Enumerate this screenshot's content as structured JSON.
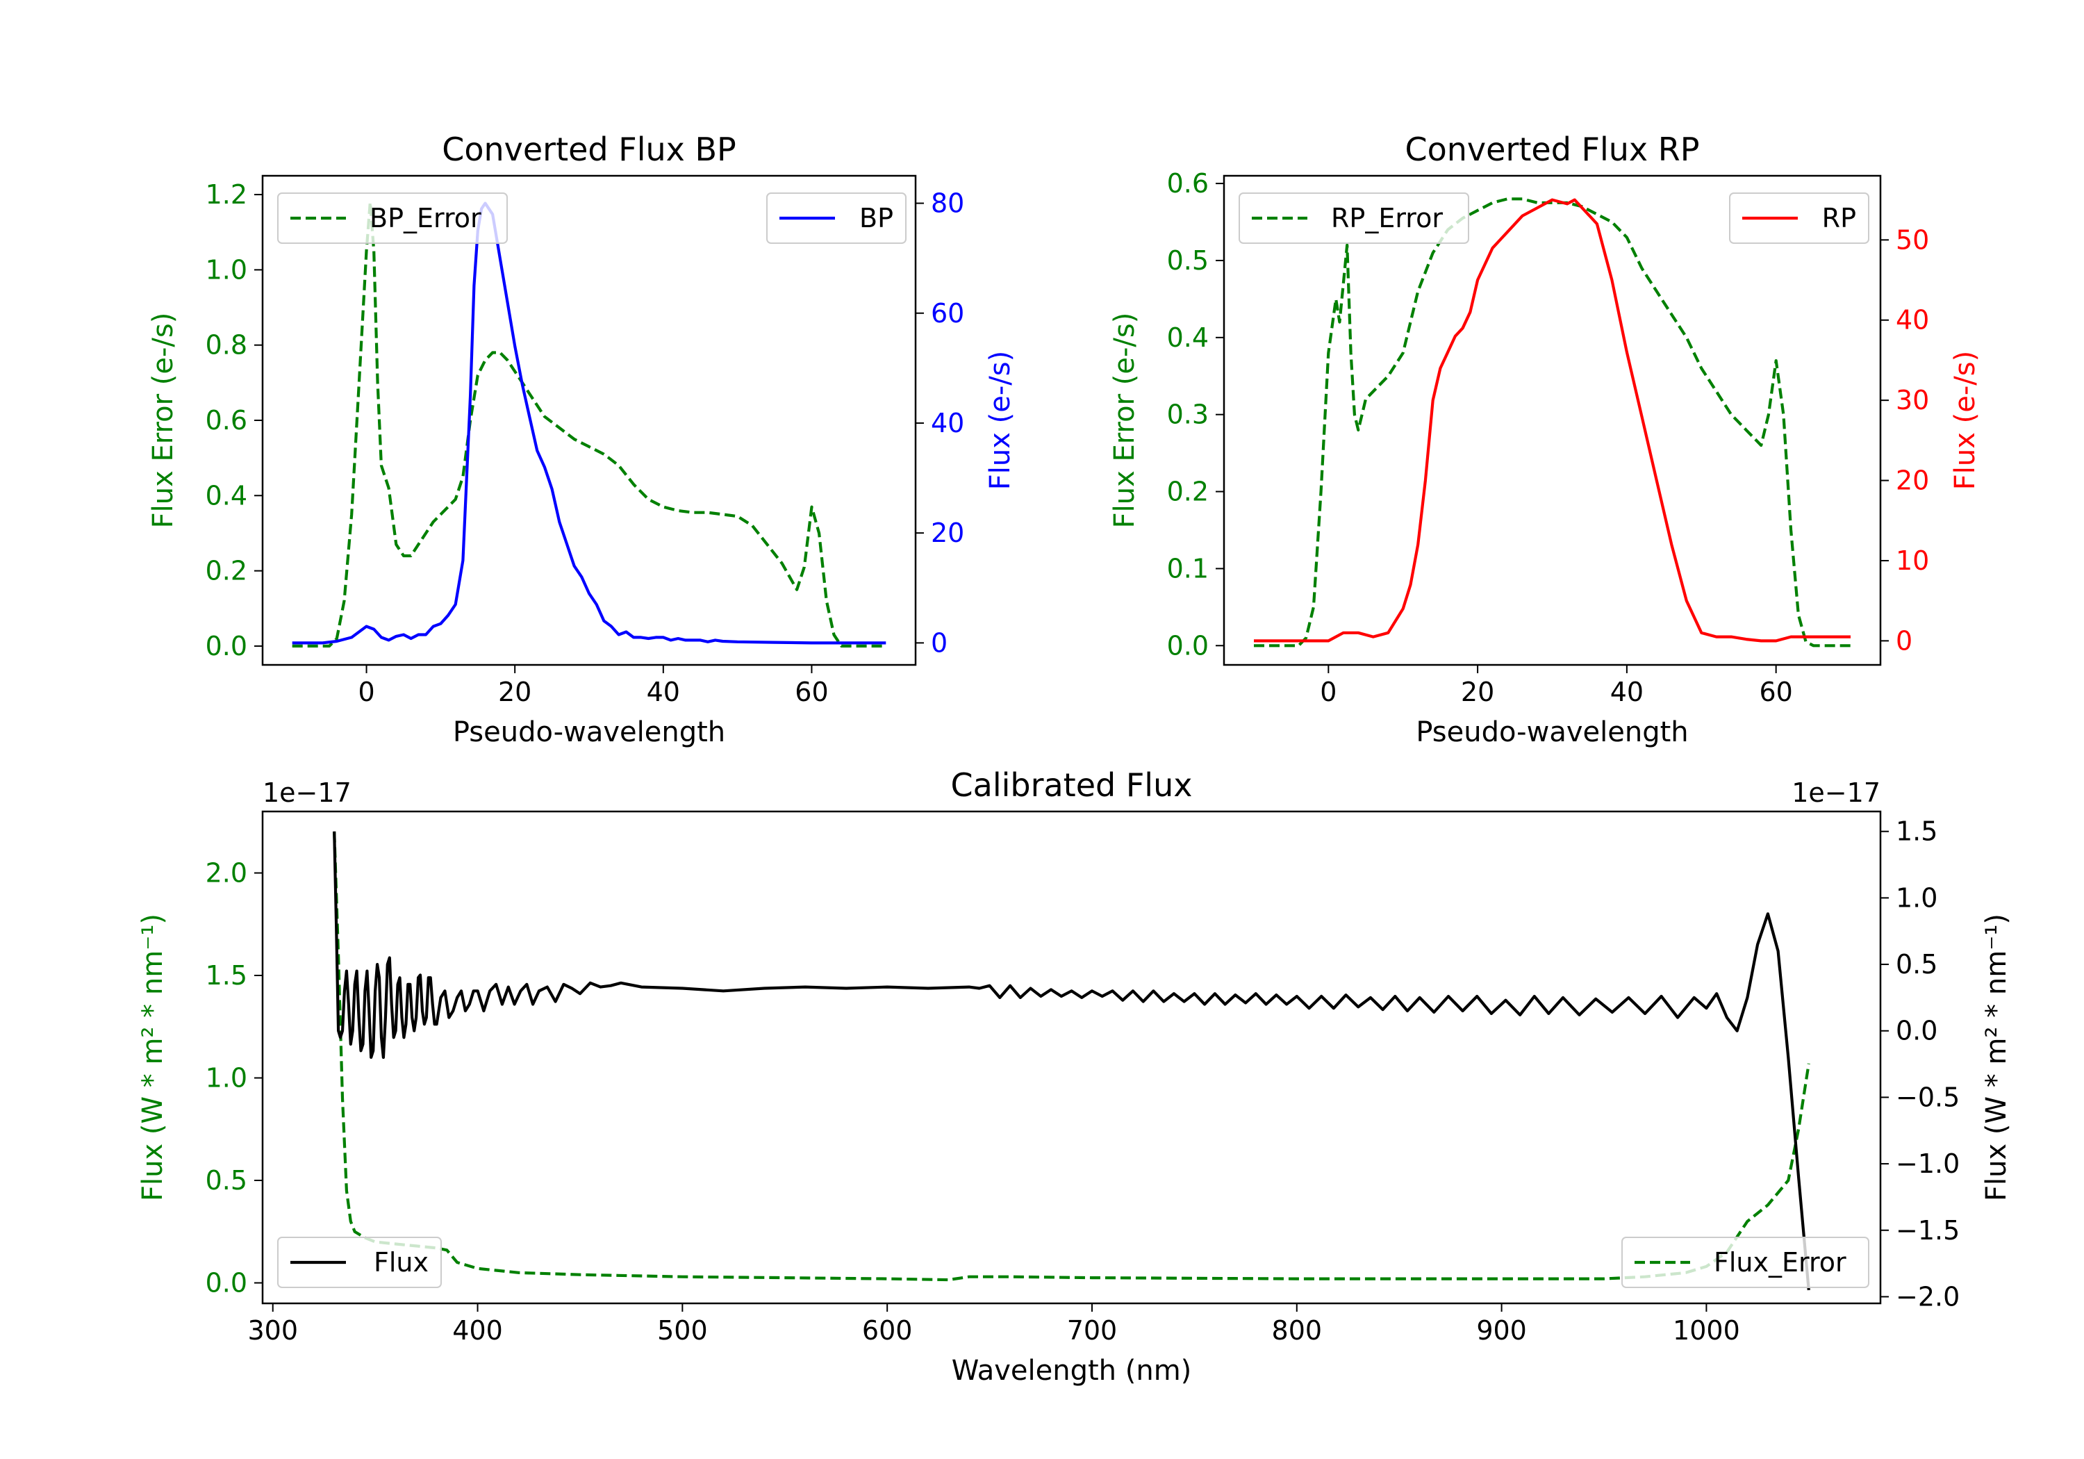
{
  "colors": {
    "green": "#008000",
    "blue": "#0000ff",
    "red": "#ff0000",
    "black": "#000000"
  },
  "chart_data": [
    {
      "id": "bp",
      "type": "line",
      "title": "Converted Flux BP",
      "xlabel": "Pseudo-wavelength",
      "ylabel_left": "Flux Error (e-/s)",
      "ylabel_right": "Flux (e-/s)",
      "xlim": [
        -14,
        74
      ],
      "ylim_left": [
        -0.05,
        1.25
      ],
      "ylim_right": [
        -4,
        85
      ],
      "xticks": [
        "0",
        "20",
        "40",
        "60"
      ],
      "yticks_left": [
        "0.0",
        "0.2",
        "0.4",
        "0.6",
        "0.8",
        "1.0",
        "1.2"
      ],
      "yticks_right": [
        "0",
        "20",
        "40",
        "60",
        "80"
      ],
      "legend_left": "BP_Error",
      "legend_right": "BP",
      "series": [
        {
          "name": "BP_Error",
          "axis": "left",
          "color": "#008000",
          "dash": true,
          "x": [
            -10,
            -5,
            -4,
            -3,
            -2,
            -1,
            0,
            0.5,
            1,
            1.5,
            2,
            3,
            4,
            5,
            6,
            7,
            8,
            9,
            10,
            11,
            12,
            13,
            14,
            15,
            16,
            17,
            18,
            19,
            20,
            21,
            22,
            24,
            26,
            28,
            30,
            32,
            34,
            36,
            38,
            40,
            42,
            44,
            46,
            48,
            50,
            52,
            54,
            56,
            58,
            59,
            60,
            61,
            62,
            63,
            64,
            65,
            70
          ],
          "y": [
            0,
            0,
            0.02,
            0.12,
            0.35,
            0.7,
            1.05,
            1.18,
            1.05,
            0.7,
            0.48,
            0.42,
            0.27,
            0.24,
            0.24,
            0.27,
            0.3,
            0.33,
            0.35,
            0.37,
            0.39,
            0.45,
            0.6,
            0.72,
            0.76,
            0.78,
            0.78,
            0.76,
            0.73,
            0.7,
            0.67,
            0.61,
            0.58,
            0.55,
            0.53,
            0.51,
            0.48,
            0.43,
            0.39,
            0.37,
            0.36,
            0.355,
            0.355,
            0.35,
            0.345,
            0.32,
            0.27,
            0.22,
            0.15,
            0.21,
            0.37,
            0.3,
            0.12,
            0.03,
            0.0,
            0.0,
            0.0
          ]
        },
        {
          "name": "BP",
          "axis": "right",
          "color": "#0000ff",
          "dash": false,
          "x": [
            -10,
            -6,
            -4,
            -2,
            0,
            1,
            2,
            3,
            4,
            5,
            6,
            7,
            8,
            9,
            10,
            11,
            12,
            13,
            14,
            14.5,
            15,
            15.5,
            16,
            17,
            18,
            19,
            20,
            21,
            22,
            23,
            24,
            25,
            26,
            27,
            28,
            29,
            30,
            31,
            32,
            33,
            34,
            35,
            36,
            37,
            38,
            39,
            40,
            41,
            42,
            43,
            44,
            45,
            46,
            47,
            48,
            50,
            55,
            60,
            65,
            70
          ],
          "y": [
            0,
            0,
            0.3,
            1,
            3,
            2.5,
            1,
            0.5,
            1.2,
            1.5,
            0.8,
            1.5,
            1.5,
            3,
            3.5,
            5,
            7,
            15,
            45,
            65,
            75,
            79,
            80,
            78,
            70,
            62,
            54,
            47,
            41,
            35,
            32,
            28,
            22,
            18,
            14,
            12,
            9,
            7,
            4,
            3,
            1.5,
            2,
            1,
            1,
            0.8,
            1,
            1,
            0.5,
            0.8,
            0.5,
            0.5,
            0.5,
            0.2,
            0.5,
            0.3,
            0.2,
            0.1,
            0,
            0,
            0
          ]
        }
      ]
    },
    {
      "id": "rp",
      "type": "line",
      "title": "Converted Flux RP",
      "xlabel": "Pseudo-wavelength",
      "ylabel_left": "Flux Error (e-/s)",
      "ylabel_right": "Flux (e-/s)",
      "xlim": [
        -14,
        74
      ],
      "ylim_left": [
        -0.025,
        0.61
      ],
      "ylim_right": [
        -3,
        58
      ],
      "xticks": [
        "0",
        "20",
        "40",
        "60"
      ],
      "yticks_left": [
        "0.0",
        "0.1",
        "0.2",
        "0.3",
        "0.4",
        "0.5",
        "0.6"
      ],
      "yticks_right": [
        "0",
        "10",
        "20",
        "30",
        "40",
        "50"
      ],
      "legend_left": "RP_Error",
      "legend_right": "RP",
      "series": [
        {
          "name": "RP_Error",
          "axis": "left",
          "color": "#008000",
          "dash": true,
          "x": [
            -10,
            -6,
            -4,
            -3,
            -2,
            -1,
            0,
            1,
            1.5,
            2,
            2.5,
            3,
            3.5,
            4,
            4.5,
            5,
            6,
            8,
            10,
            12,
            14,
            16,
            18,
            20,
            22,
            24,
            26,
            28,
            30,
            32,
            34,
            36,
            38,
            40,
            42,
            44,
            46,
            48,
            50,
            52,
            54,
            55,
            56,
            57,
            58,
            59,
            60,
            61,
            62,
            63,
            64,
            65,
            70
          ],
          "y": [
            0,
            0,
            0,
            0.01,
            0.05,
            0.2,
            0.38,
            0.45,
            0.42,
            0.47,
            0.52,
            0.38,
            0.3,
            0.28,
            0.3,
            0.32,
            0.33,
            0.35,
            0.38,
            0.46,
            0.51,
            0.54,
            0.555,
            0.565,
            0.575,
            0.58,
            0.58,
            0.575,
            0.575,
            0.575,
            0.57,
            0.56,
            0.55,
            0.53,
            0.49,
            0.46,
            0.43,
            0.4,
            0.36,
            0.33,
            0.3,
            0.29,
            0.28,
            0.27,
            0.26,
            0.3,
            0.37,
            0.3,
            0.15,
            0.04,
            0.005,
            0,
            0
          ]
        },
        {
          "name": "RP",
          "axis": "right",
          "color": "#ff0000",
          "dash": false,
          "x": [
            -10,
            -4,
            -2,
            0,
            2,
            4,
            6,
            8,
            10,
            11,
            12,
            13,
            14,
            15,
            16,
            17,
            18,
            19,
            20,
            22,
            24,
            26,
            28,
            30,
            32,
            33,
            34,
            36,
            38,
            40,
            42,
            44,
            46,
            48,
            50,
            52,
            54,
            56,
            58,
            60,
            62,
            65,
            70
          ],
          "y": [
            0,
            0,
            0,
            0,
            1,
            1,
            0.5,
            1,
            4,
            7,
            12,
            20,
            30,
            34,
            36,
            38,
            39,
            41,
            45,
            49,
            51,
            53,
            54,
            55,
            54.5,
            55,
            54,
            52,
            45,
            36,
            28,
            20,
            12,
            5,
            1,
            0.5,
            0.5,
            0.2,
            0,
            0,
            0.5,
            0.5,
            0.5
          ]
        }
      ]
    },
    {
      "id": "calibrated",
      "type": "line",
      "title": "Calibrated Flux",
      "xlabel": "Wavelength (nm)",
      "ylabel_left": "Flux (W * m² * nm⁻¹)",
      "ylabel_right": "Flux (W * m² * nm⁻¹)",
      "offset_left": "1e−17",
      "offset_right": "1e−17",
      "xlim": [
        295,
        1085
      ],
      "ylim_left": [
        -0.1,
        2.3
      ],
      "ylim_right": [
        -2.05,
        1.65
      ],
      "xticks": [
        "300",
        "400",
        "500",
        "600",
        "700",
        "800",
        "900",
        "1000"
      ],
      "yticks_left": [
        "0.0",
        "0.5",
        "1.0",
        "1.5",
        "2.0"
      ],
      "yticks_right": [
        "−2.0",
        "−1.5",
        "−1.0",
        "−0.5",
        "0.0",
        "0.5",
        "1.0",
        "1.5"
      ],
      "legend_left": "Flux",
      "legend_right": "Flux_Error",
      "series": [
        {
          "name": "Flux_Error",
          "axis": "left",
          "color": "#008000",
          "dash": true,
          "x": [
            330,
            332,
            334,
            336,
            338,
            340,
            345,
            350,
            360,
            370,
            380,
            385,
            390,
            400,
            420,
            450,
            500,
            550,
            600,
            630,
            640,
            660,
            700,
            800,
            900,
            950,
            970,
            990,
            1000,
            1010,
            1020,
            1030,
            1040,
            1045,
            1050
          ],
          "y": [
            2.2,
            1.6,
            0.9,
            0.45,
            0.3,
            0.25,
            0.22,
            0.2,
            0.19,
            0.18,
            0.17,
            0.16,
            0.1,
            0.07,
            0.05,
            0.04,
            0.03,
            0.025,
            0.02,
            0.015,
            0.03,
            0.03,
            0.025,
            0.02,
            0.02,
            0.02,
            0.03,
            0.05,
            0.08,
            0.15,
            0.3,
            0.38,
            0.5,
            0.75,
            1.07
          ]
        },
        {
          "name": "Flux",
          "axis": "right",
          "color": "#000000",
          "dash": false,
          "x": [
            330,
            331,
            332,
            333,
            334,
            335,
            336,
            337,
            338,
            339,
            340,
            341,
            342,
            343,
            344,
            345,
            346,
            347,
            348,
            349,
            350,
            351,
            352,
            353,
            354,
            355,
            356,
            357,
            358,
            359,
            360,
            361,
            362,
            363,
            364,
            365,
            366,
            367,
            368,
            369,
            370,
            371,
            372,
            373,
            374,
            375,
            376,
            377,
            378,
            379,
            380,
            382,
            384,
            386,
            388,
            390,
            392,
            394,
            396,
            398,
            400,
            403,
            406,
            409,
            412,
            415,
            418,
            421,
            424,
            427,
            430,
            434,
            438,
            442,
            446,
            450,
            455,
            460,
            465,
            470,
            480,
            500,
            520,
            540,
            560,
            580,
            600,
            620,
            640,
            645,
            650,
            655,
            660,
            665,
            670,
            675,
            680,
            685,
            690,
            695,
            700,
            705,
            710,
            715,
            720,
            725,
            730,
            735,
            740,
            745,
            750,
            755,
            760,
            765,
            770,
            775,
            780,
            785,
            790,
            795,
            800,
            806,
            812,
            818,
            824,
            830,
            836,
            842,
            848,
            854,
            860,
            867,
            874,
            881,
            888,
            895,
            902,
            909,
            916,
            923,
            930,
            938,
            946,
            954,
            962,
            970,
            978,
            986,
            994,
            1000,
            1005,
            1010,
            1015,
            1020,
            1025,
            1030,
            1035,
            1040,
            1045,
            1050
          ],
          "y": [
            1.5,
            0.8,
            0.0,
            -0.05,
            0.0,
            0.3,
            0.45,
            0.2,
            -0.1,
            0.0,
            0.35,
            0.45,
            0.1,
            -0.15,
            -0.1,
            0.3,
            0.45,
            0.15,
            -0.2,
            -0.15,
            0.3,
            0.5,
            0.4,
            -0.05,
            -0.2,
            0.1,
            0.5,
            0.55,
            0.2,
            -0.05,
            0.0,
            0.35,
            0.4,
            0.1,
            -0.05,
            0.05,
            0.35,
            0.35,
            0.1,
            0.0,
            0.1,
            0.4,
            0.42,
            0.15,
            0.05,
            0.1,
            0.4,
            0.4,
            0.2,
            0.05,
            0.05,
            0.25,
            0.3,
            0.1,
            0.15,
            0.25,
            0.3,
            0.15,
            0.2,
            0.3,
            0.3,
            0.15,
            0.3,
            0.35,
            0.2,
            0.33,
            0.2,
            0.3,
            0.35,
            0.2,
            0.3,
            0.33,
            0.22,
            0.35,
            0.32,
            0.28,
            0.36,
            0.33,
            0.34,
            0.36,
            0.33,
            0.32,
            0.3,
            0.32,
            0.33,
            0.32,
            0.33,
            0.32,
            0.33,
            0.32,
            0.34,
            0.25,
            0.34,
            0.25,
            0.32,
            0.26,
            0.31,
            0.26,
            0.3,
            0.25,
            0.3,
            0.26,
            0.3,
            0.23,
            0.3,
            0.22,
            0.3,
            0.22,
            0.28,
            0.22,
            0.28,
            0.2,
            0.28,
            0.2,
            0.27,
            0.21,
            0.28,
            0.2,
            0.27,
            0.2,
            0.26,
            0.17,
            0.26,
            0.17,
            0.27,
            0.18,
            0.25,
            0.16,
            0.26,
            0.15,
            0.25,
            0.14,
            0.26,
            0.15,
            0.26,
            0.13,
            0.23,
            0.12,
            0.26,
            0.13,
            0.25,
            0.12,
            0.24,
            0.14,
            0.25,
            0.13,
            0.26,
            0.1,
            0.25,
            0.17,
            0.28,
            0.1,
            0.0,
            0.25,
            0.65,
            0.88,
            0.6,
            -0.2,
            -1.1,
            -1.95
          ]
        }
      ]
    }
  ]
}
